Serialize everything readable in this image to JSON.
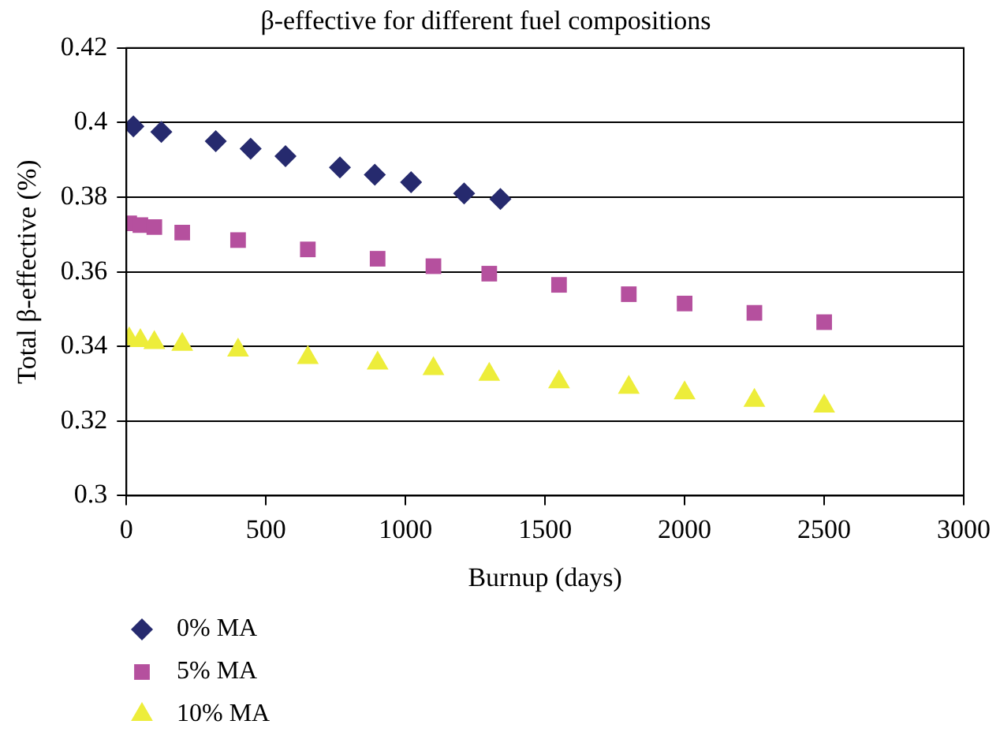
{
  "chart_data": {
    "type": "scatter",
    "title": "β-effective for different fuel compositions",
    "xlabel": "Burnup (days)",
    "ylabel": "Total β-effective (%)",
    "xlim": [
      0,
      3000
    ],
    "xticks": [
      0,
      500,
      1000,
      1500,
      2000,
      2500,
      3000
    ],
    "ylim": [
      0.3,
      0.42
    ],
    "yticks": [
      0.3,
      0.32,
      0.34,
      0.36,
      0.38,
      0.4,
      0.42
    ],
    "grid": "y",
    "legend": "bottom left",
    "series": [
      {
        "name": "0% MA",
        "color": "#262a6e",
        "marker": "diamond",
        "x": [
          25,
          125,
          320,
          445,
          570,
          765,
          890,
          1020,
          1210,
          1340
        ],
        "values": [
          0.399,
          0.3975,
          0.395,
          0.393,
          0.391,
          0.388,
          0.386,
          0.384,
          0.381,
          0.3795
        ]
      },
      {
        "name": "5% MA",
        "color": "#b5509e",
        "marker": "square",
        "x": [
          10,
          50,
          100,
          200,
          400,
          650,
          900,
          1100,
          1300,
          1550,
          1800,
          2000,
          2250,
          2500
        ],
        "values": [
          0.373,
          0.3725,
          0.372,
          0.3705,
          0.3685,
          0.366,
          0.3635,
          0.3615,
          0.3595,
          0.3565,
          0.354,
          0.3515,
          0.349,
          0.3465
        ]
      },
      {
        "name": "10% MA",
        "color": "#eded3a",
        "marker": "triangle",
        "x": [
          10,
          50,
          100,
          200,
          400,
          650,
          900,
          1100,
          1300,
          1550,
          1800,
          2000,
          2250,
          2500
        ],
        "values": [
          0.342,
          0.3415,
          0.341,
          0.3405,
          0.339,
          0.337,
          0.3355,
          0.334,
          0.3325,
          0.3305,
          0.329,
          0.3275,
          0.3255,
          0.324
        ]
      }
    ]
  }
}
